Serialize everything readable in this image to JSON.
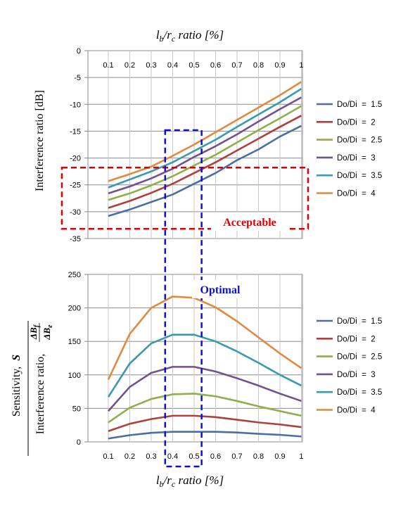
{
  "chart_data": [
    {
      "type": "line",
      "id": "interference",
      "title": "",
      "xlabel_base": "l",
      "xlabel_sub1": "b",
      "xlabel_mid": "/r",
      "xlabel_sub2": "c",
      "xlabel_tail": " ratio [%]",
      "ylabel": "Interference ratio [dB]",
      "x": [
        0.1,
        0.2,
        0.3,
        0.4,
        0.5,
        0.6,
        0.7,
        0.8,
        0.9,
        1
      ],
      "x_tick_labels": [
        "0.1",
        "0.2",
        "0.3",
        "0.4",
        "0.5",
        "0.6",
        "0.7",
        "0.8",
        "0.9",
        "1"
      ],
      "ylim": [
        -35,
        0
      ],
      "y_ticks": [
        0,
        -5,
        -10,
        -15,
        -20,
        -25,
        -30,
        -35
      ],
      "y_tick_labels": [
        "0",
        "-5",
        "-10",
        "-15",
        "-20",
        "-25",
        "-30",
        "-35"
      ],
      "x_axis_position": "top",
      "grid": true,
      "legend": "right",
      "series": [
        {
          "name": "Do/Di  =  1.5",
          "color": "#4A6FA5",
          "values": [
            -30.8,
            -29.6,
            -28.2,
            -26.8,
            -24.8,
            -22.8,
            -20.4,
            -18.4,
            -16.0,
            -14.0
          ]
        },
        {
          "name": "Do/Di  =  2",
          "color": "#B0403D",
          "values": [
            -29.3,
            -28.0,
            -26.5,
            -24.8,
            -22.8,
            -20.8,
            -18.6,
            -16.4,
            -14.2,
            -12.1
          ]
        },
        {
          "name": "Do/Di  =  2.5",
          "color": "#8FAF48",
          "values": [
            -27.8,
            -26.6,
            -25.1,
            -23.4,
            -21.4,
            -19.4,
            -17.1,
            -14.8,
            -12.6,
            -10.3
          ]
        },
        {
          "name": "Do/Di  =  3",
          "color": "#73518F",
          "values": [
            -26.6,
            -25.3,
            -23.8,
            -22.0,
            -19.8,
            -17.8,
            -15.6,
            -13.2,
            -10.9,
            -8.7
          ]
        },
        {
          "name": "Do/Di  =  3.5",
          "color": "#3B9AAF",
          "values": [
            -25.5,
            -24.0,
            -22.5,
            -20.8,
            -18.7,
            -16.6,
            -14.2,
            -11.9,
            -9.6,
            -7.1
          ]
        },
        {
          "name": "Do/Di  =  4",
          "color": "#E28A3C",
          "values": [
            -24.3,
            -23.0,
            -21.6,
            -19.6,
            -17.5,
            -15.2,
            -12.9,
            -10.6,
            -8.3,
            -5.8
          ]
        }
      ],
      "annotation": {
        "label": "Acceptable",
        "color": "#E00000",
        "y_from": -33.2,
        "y_to": -21.8
      }
    },
    {
      "type": "line",
      "id": "sensitivity",
      "title": "",
      "xlabel_base": "l",
      "xlabel_sub1": "b",
      "xlabel_mid": "/r",
      "xlabel_sub2": "c",
      "xlabel_tail": " ratio [%]",
      "ylabel_top": "Sensitivity,",
      "ylabel_top_symbol": "S",
      "ylabel_bottom": "Interference ratio,",
      "ylabel_frac_num": "ΔB",
      "ylabel_frac_num_sub": "f",
      "ylabel_frac_den": "ΔB",
      "ylabel_frac_den_sub": "e",
      "x": [
        0.1,
        0.2,
        0.3,
        0.4,
        0.5,
        0.6,
        0.7,
        0.8,
        0.9,
        1
      ],
      "x_tick_labels": [
        "0.1",
        "0.2",
        "0.3",
        "0.4",
        "0.5",
        "0.6",
        "0.7",
        "0.8",
        "0.9",
        "1"
      ],
      "ylim": [
        0,
        250
      ],
      "y_ticks": [
        0,
        50,
        100,
        150,
        200,
        250
      ],
      "y_tick_labels": [
        "0",
        "50",
        "100",
        "150",
        "200",
        "250"
      ],
      "x_axis_position": "bottom",
      "grid": true,
      "legend": "right",
      "series": [
        {
          "name": "Do/Di  =  1.5",
          "color": "#4A6FA5",
          "values": [
            5,
            10,
            13.5,
            15,
            15,
            15,
            14,
            12,
            10.5,
            8
          ]
        },
        {
          "name": "Do/Di  =  2",
          "color": "#B0403D",
          "values": [
            16,
            27,
            34,
            39,
            39,
            37,
            33,
            29,
            26,
            22
          ]
        },
        {
          "name": "Do/Di  =  2.5",
          "color": "#8FAF48",
          "values": [
            29,
            51,
            64,
            71,
            72,
            68,
            61,
            53,
            46,
            39
          ]
        },
        {
          "name": "Do/Di  =  3",
          "color": "#73518F",
          "values": [
            46,
            82,
            103,
            112,
            112,
            105,
            95,
            84,
            72,
            61
          ]
        },
        {
          "name": "Do/Di  =  3.5",
          "color": "#3B9AAF",
          "values": [
            67,
            117,
            147,
            160,
            160,
            150,
            135,
            118,
            100,
            84
          ]
        },
        {
          "name": "Do/Di  =  4",
          "color": "#E28A3C",
          "values": [
            93,
            161,
            200,
            217,
            215,
            201,
            180,
            156,
            132,
            110
          ]
        }
      ]
    }
  ],
  "optimal_annotation": {
    "label": "Optimal",
    "color": "#1010D0",
    "x_from": 0.365,
    "x_to": 0.535
  }
}
